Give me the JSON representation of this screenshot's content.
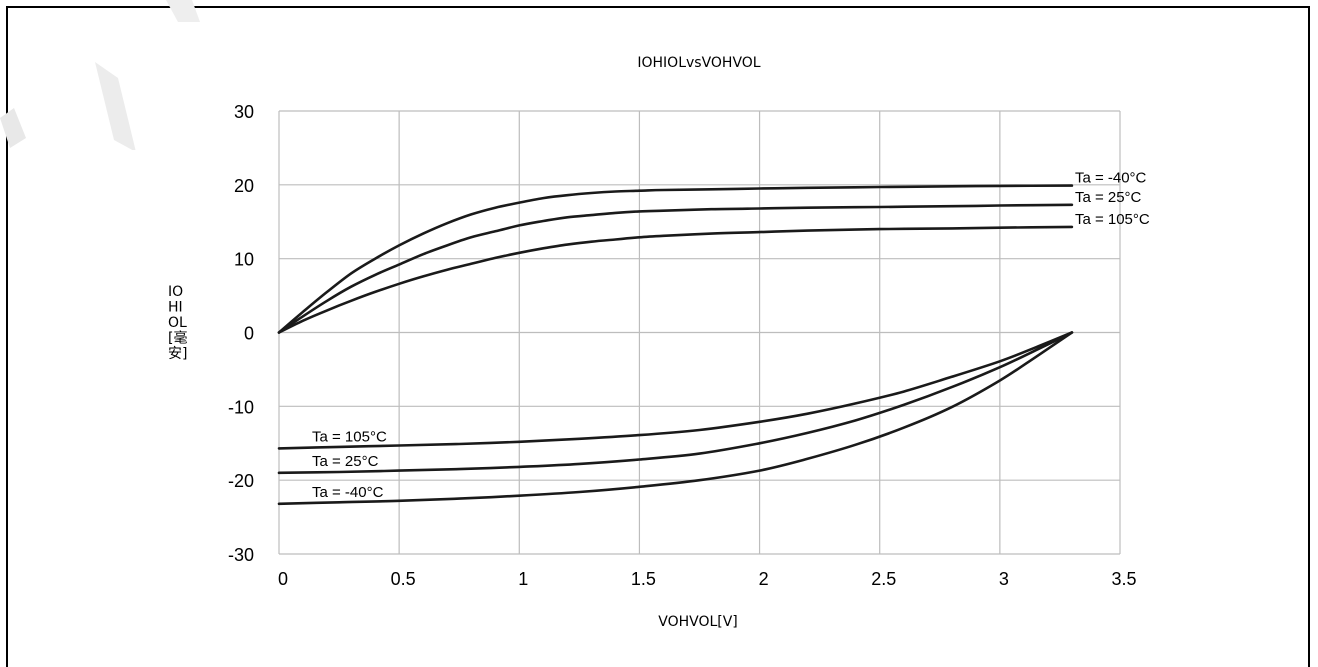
{
  "chart_data": {
    "type": "line",
    "title": "IOHIOLvsVOHVOL",
    "xlabel": "VOHVOL[V]",
    "ylabel_lines": [
      "IO",
      "HI",
      "OL",
      "[毫",
      "安]"
    ],
    "xlim": [
      0,
      3.5
    ],
    "ylim": [
      -30,
      30
    ],
    "x_ticks": [
      0,
      0.5,
      1,
      1.5,
      2,
      2.5,
      3,
      3.5
    ],
    "x_tick_labels": [
      "0",
      "0.5",
      "1",
      "1.5",
      "2",
      "2.5",
      "3",
      "3.5"
    ],
    "y_ticks": [
      30,
      20,
      10,
      0,
      -10,
      -20,
      -30
    ],
    "y_tick_labels": [
      "30",
      "20",
      "10",
      "0",
      "-10",
      "-20",
      "-30"
    ],
    "grid": true,
    "series": [
      {
        "name": "Ta = -40°C",
        "group": "IOH",
        "label_side": "right",
        "x": [
          0,
          0.1,
          0.2,
          0.3,
          0.4,
          0.5,
          0.6,
          0.7,
          0.8,
          0.9,
          1.0,
          1.1,
          1.2,
          1.3,
          1.4,
          1.5,
          1.6,
          1.8,
          2.0,
          2.2,
          2.5,
          2.8,
          3.0,
          3.3
        ],
        "y": [
          0,
          2.8,
          5.5,
          8.0,
          10.0,
          11.8,
          13.4,
          14.8,
          16.0,
          16.9,
          17.6,
          18.2,
          18.6,
          18.9,
          19.1,
          19.2,
          19.3,
          19.4,
          19.5,
          19.6,
          19.7,
          19.8,
          19.85,
          19.9
        ]
      },
      {
        "name": "Ta = 25°C",
        "group": "IOH",
        "label_side": "right",
        "x": [
          0,
          0.1,
          0.2,
          0.3,
          0.4,
          0.5,
          0.6,
          0.7,
          0.8,
          0.9,
          1.0,
          1.1,
          1.2,
          1.3,
          1.4,
          1.5,
          1.6,
          1.8,
          2.0,
          2.2,
          2.5,
          2.8,
          3.0,
          3.3
        ],
        "y": [
          0,
          2.2,
          4.3,
          6.2,
          7.8,
          9.2,
          10.6,
          11.8,
          12.9,
          13.7,
          14.5,
          15.1,
          15.6,
          15.9,
          16.2,
          16.4,
          16.5,
          16.7,
          16.8,
          16.9,
          17.0,
          17.1,
          17.2,
          17.3
        ]
      },
      {
        "name": "Ta = 105°C",
        "group": "IOH",
        "label_side": "right",
        "x": [
          0,
          0.1,
          0.2,
          0.3,
          0.4,
          0.5,
          0.6,
          0.7,
          0.8,
          0.9,
          1.0,
          1.1,
          1.2,
          1.3,
          1.4,
          1.5,
          1.6,
          1.8,
          2.0,
          2.2,
          2.5,
          2.8,
          3.0,
          3.3
        ],
        "y": [
          0,
          1.6,
          3.0,
          4.3,
          5.5,
          6.6,
          7.6,
          8.5,
          9.3,
          10.1,
          10.8,
          11.4,
          11.9,
          12.3,
          12.6,
          12.9,
          13.1,
          13.4,
          13.6,
          13.8,
          14.0,
          14.1,
          14.2,
          14.3
        ]
      },
      {
        "name": "Ta = 105°C",
        "group": "IOL",
        "label_side": "left",
        "x": [
          0,
          0.25,
          0.5,
          0.75,
          1.0,
          1.25,
          1.5,
          1.75,
          2.0,
          2.2,
          2.4,
          2.6,
          2.8,
          3.0,
          3.15,
          3.3
        ],
        "y": [
          -15.7,
          -15.5,
          -15.3,
          -15.1,
          -14.8,
          -14.4,
          -13.9,
          -13.2,
          -12.1,
          -11.0,
          -9.6,
          -8.0,
          -6.0,
          -3.9,
          -2.0,
          0
        ]
      },
      {
        "name": "Ta = 25°C",
        "group": "IOL",
        "label_side": "left",
        "x": [
          0,
          0.25,
          0.5,
          0.75,
          1.0,
          1.25,
          1.5,
          1.75,
          2.0,
          2.2,
          2.4,
          2.6,
          2.8,
          3.0,
          3.15,
          3.3
        ],
        "y": [
          -19.0,
          -18.9,
          -18.7,
          -18.5,
          -18.2,
          -17.8,
          -17.2,
          -16.4,
          -15.0,
          -13.6,
          -11.9,
          -9.8,
          -7.4,
          -4.7,
          -2.4,
          0
        ]
      },
      {
        "name": "Ta = -40°C",
        "group": "IOL",
        "label_side": "left",
        "x": [
          0,
          0.25,
          0.5,
          0.75,
          1.0,
          1.25,
          1.5,
          1.75,
          2.0,
          2.2,
          2.4,
          2.6,
          2.8,
          3.0,
          3.15,
          3.3
        ],
        "y": [
          -23.2,
          -23.0,
          -22.8,
          -22.5,
          -22.1,
          -21.6,
          -20.9,
          -20.0,
          -18.7,
          -17.1,
          -15.2,
          -12.9,
          -10.1,
          -6.5,
          -3.3,
          0
        ]
      }
    ]
  }
}
